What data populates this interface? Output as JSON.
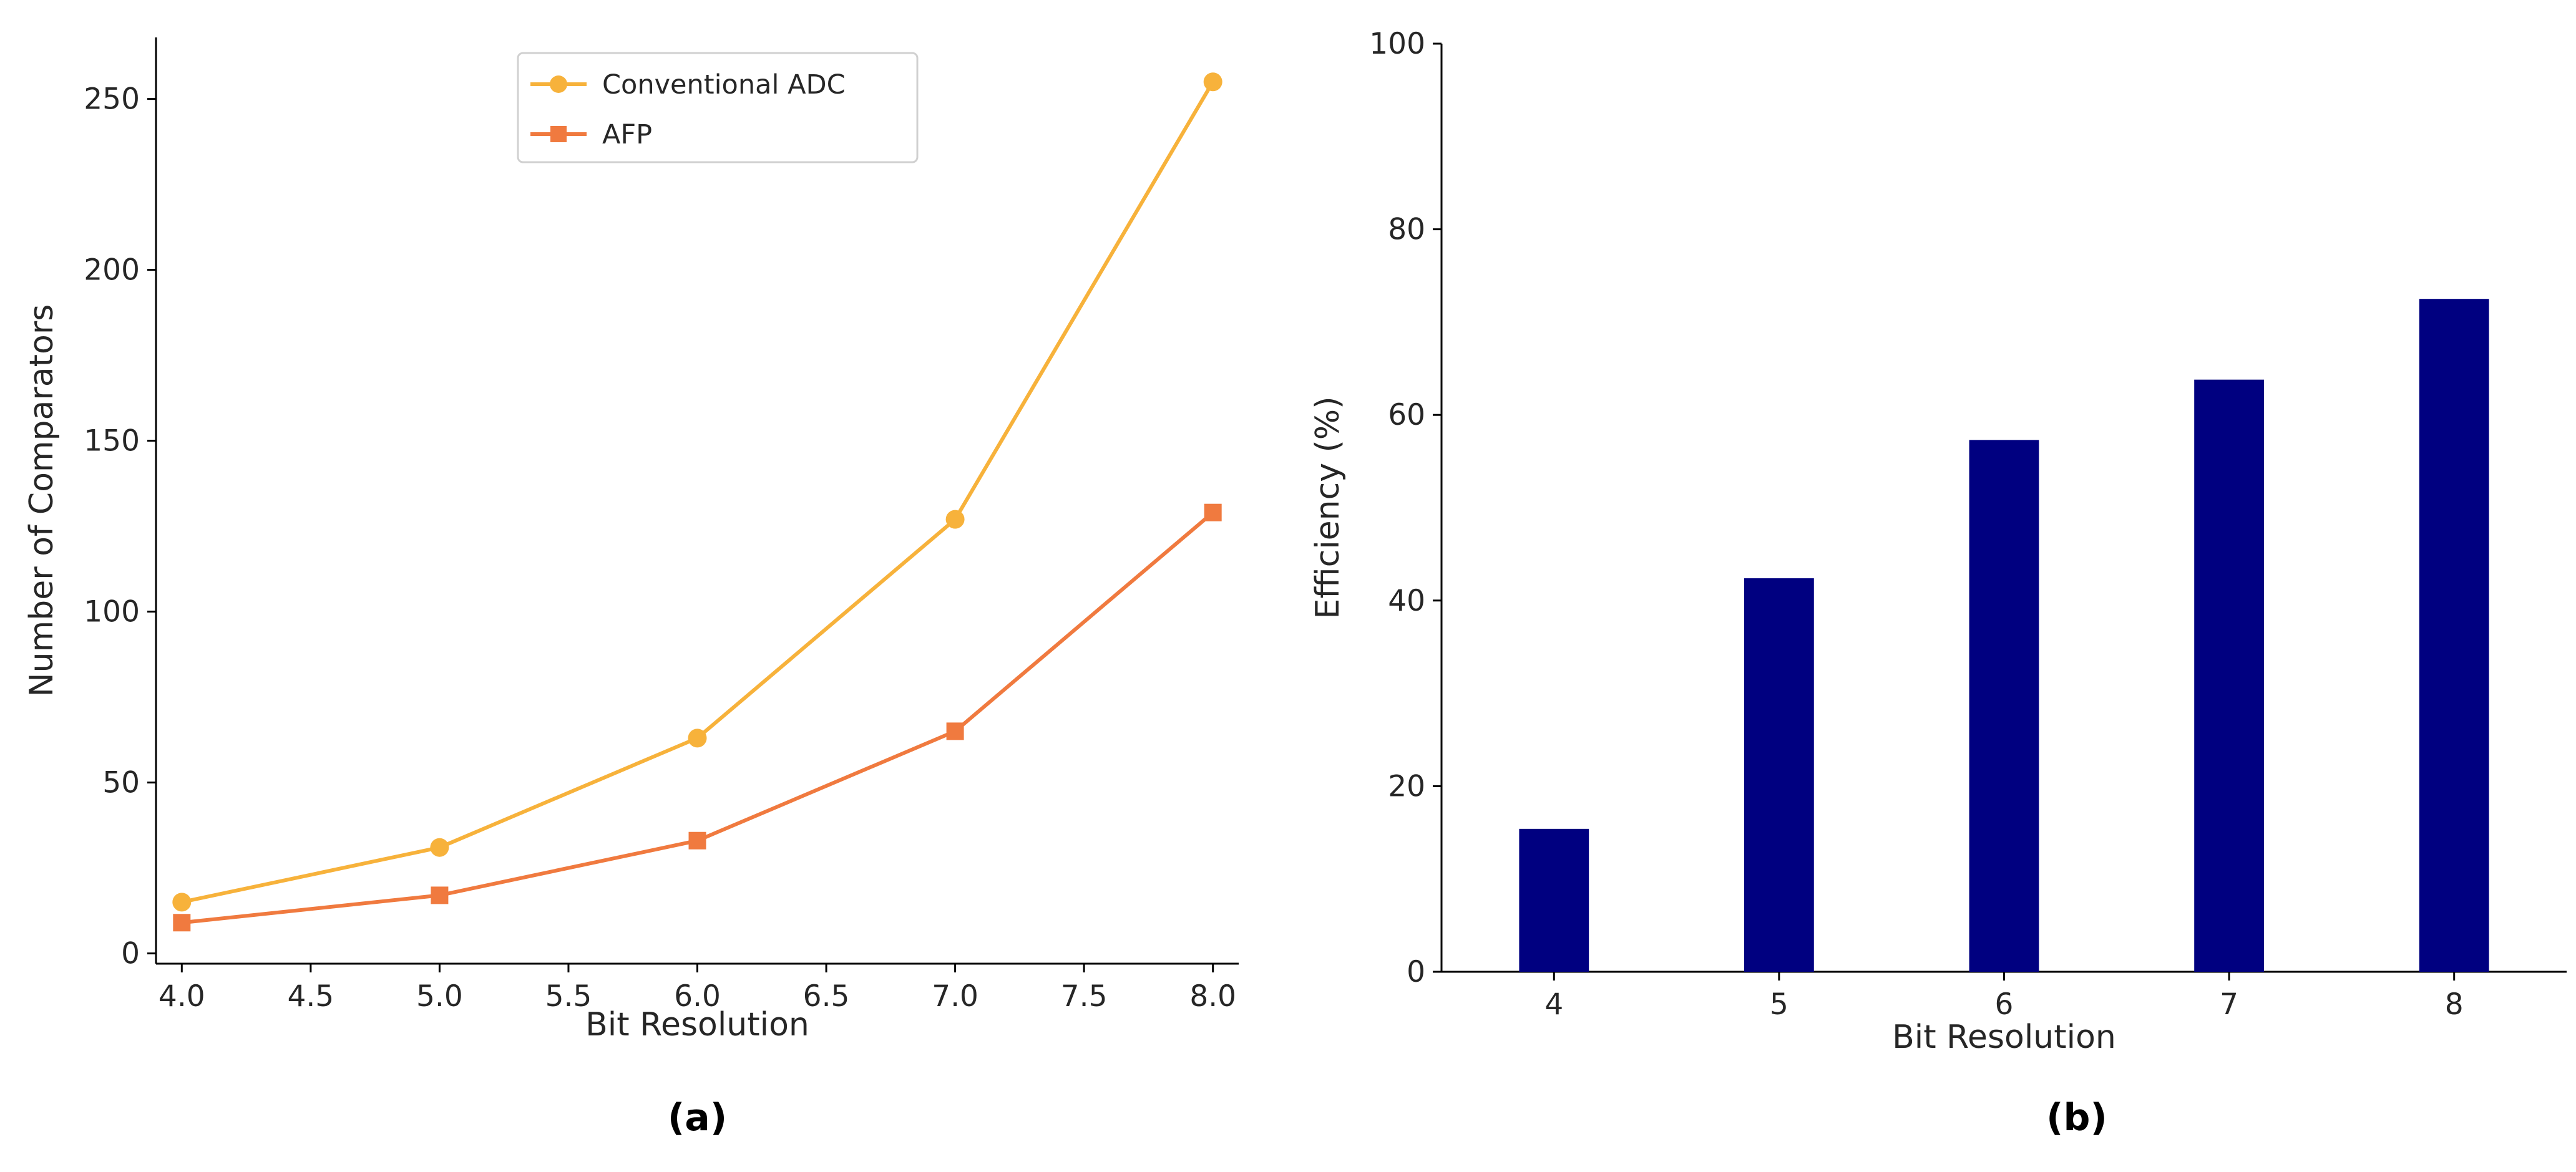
{
  "chart_data": [
    {
      "type": "line",
      "panel_label": "(a)",
      "title": "",
      "xlabel": "Bit Resolution",
      "ylabel": "Number of Comparators",
      "x": [
        4.0,
        5.0,
        6.0,
        7.0,
        8.0
      ],
      "series": [
        {
          "name": "Conventional ADC",
          "marker": "circle",
          "color": "#F7B23B",
          "values": [
            15,
            31,
            63,
            127,
            255
          ]
        },
        {
          "name": "AFP",
          "marker": "square",
          "color": "#F07A3F",
          "values": [
            9,
            17,
            33,
            65,
            129
          ]
        }
      ],
      "xlim": [
        3.9,
        8.1
      ],
      "ylim": [
        -3,
        268
      ],
      "xticks": [
        "4.0",
        "4.5",
        "5.0",
        "5.5",
        "6.0",
        "6.5",
        "7.0",
        "7.5",
        "8.0"
      ],
      "xtick_values": [
        4.0,
        4.5,
        5.0,
        5.5,
        6.0,
        6.5,
        7.0,
        7.5,
        8.0
      ],
      "yticks": [
        "0",
        "50",
        "100",
        "150",
        "200",
        "250"
      ],
      "ytick_values": [
        0,
        50,
        100,
        150,
        200,
        250
      ],
      "legend_position": "top-center",
      "grid": false
    },
    {
      "type": "bar",
      "panel_label": "(b)",
      "title": "",
      "xlabel": "Bit Resolution",
      "ylabel": "Efficiency (%)",
      "categories": [
        "4",
        "5",
        "6",
        "7",
        "8"
      ],
      "values": [
        15.4,
        42.4,
        57.3,
        63.8,
        72.5
      ],
      "color": "#000080",
      "ylim": [
        0,
        100
      ],
      "yticks": [
        "0",
        "20",
        "40",
        "60",
        "80",
        "100"
      ],
      "ytick_values": [
        0,
        20,
        40,
        60,
        80,
        100
      ],
      "grid": false
    }
  ]
}
